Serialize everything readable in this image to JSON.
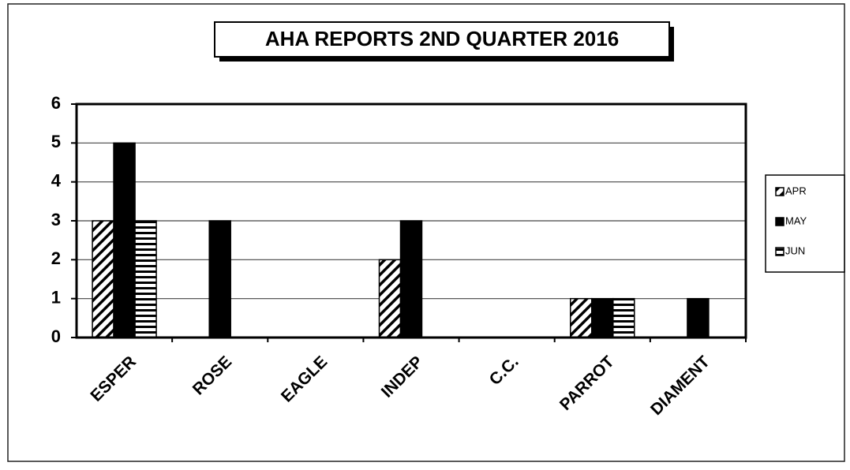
{
  "chart_data": {
    "type": "bar",
    "title": "AHA REPORTS 2ND QUARTER 2016",
    "categories": [
      "ESPER",
      "ROSE",
      "EAGLE",
      "INDEP",
      "C.C.",
      "PARROT",
      "DIAMENT"
    ],
    "series": [
      {
        "name": "APR",
        "color": "#000000",
        "pattern": "diagonal",
        "values": [
          3,
          0,
          0,
          2,
          0,
          1,
          0
        ]
      },
      {
        "name": "MAY",
        "color": "#000000",
        "pattern": "solid",
        "values": [
          5,
          3,
          0,
          3,
          0,
          1,
          1
        ]
      },
      {
        "name": "JUN",
        "color": "#000000",
        "pattern": "horizontal",
        "values": [
          3,
          0,
          0,
          0,
          0,
          1,
          0
        ]
      }
    ],
    "ylim": [
      0,
      6
    ],
    "yticks": [
      0,
      1,
      2,
      3,
      4,
      5,
      6
    ],
    "grid": true,
    "legend": "right"
  }
}
